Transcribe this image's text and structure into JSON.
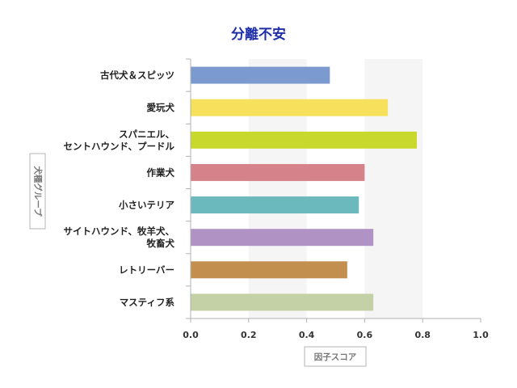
{
  "chart_data": {
    "type": "bar",
    "orientation": "horizontal",
    "title": "分離不安",
    "xlabel": "因子スコア",
    "ylabel": "犬種グループ",
    "xlim": [
      0.0,
      1.0
    ],
    "xticks": [
      "0.0",
      "0.2",
      "0.4",
      "0.6",
      "0.8",
      "1.0"
    ],
    "grid": "alternating vertical bands",
    "categories": [
      [
        "古代犬＆スピッツ"
      ],
      [
        "愛玩犬"
      ],
      [
        "スパニエル、",
        "セントハウンド、プードル"
      ],
      [
        "作業犬"
      ],
      [
        "小さいテリア"
      ],
      [
        "サイトハウンド、牧羊犬、",
        "牧畜犬"
      ],
      [
        "レトリーバー"
      ],
      [
        "マスティフ系"
      ]
    ],
    "values": [
      0.48,
      0.68,
      0.78,
      0.6,
      0.58,
      0.63,
      0.54,
      0.63
    ],
    "colors": [
      "#7b9ad0",
      "#f7e15c",
      "#c8d82c",
      "#d6828a",
      "#6bb8bd",
      "#b192c4",
      "#c28f4e",
      "#c4d1a6"
    ]
  }
}
